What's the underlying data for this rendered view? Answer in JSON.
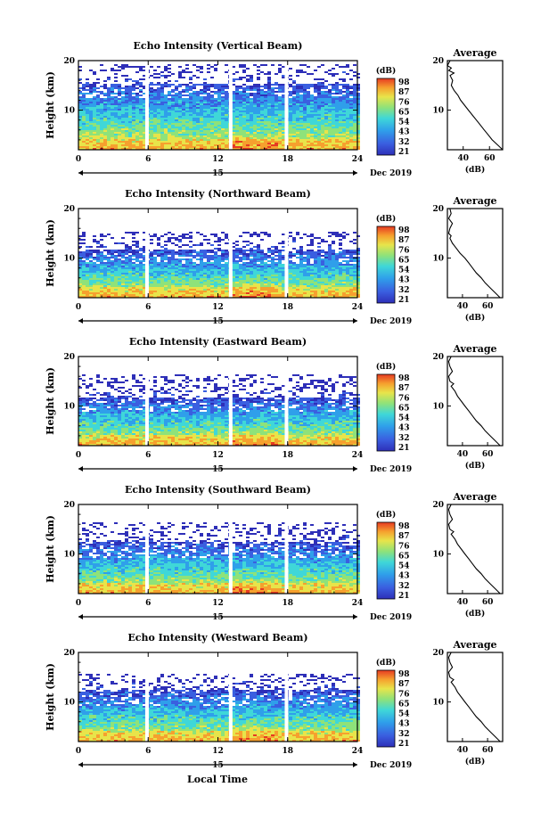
{
  "figure": {
    "x_label": "Local Time",
    "day_label": "15",
    "month_label": "Dec 2019",
    "y_label": "Height (km)",
    "profile_title": "Average",
    "profile_xlabel": "(dB)",
    "unit_label": "(dB)"
  },
  "chart_data": [
    {
      "type": "heatmap",
      "title": "Echo Intensity (Vertical Beam)",
      "xlabel": "Local Time",
      "ylabel": "Height (km)",
      "xlim": [
        0,
        24
      ],
      "ylim": [
        2,
        20
      ],
      "x_ticks": [
        "0",
        "6",
        "12",
        "18",
        "24"
      ],
      "y_ticks": [
        "10",
        "20"
      ],
      "colorbar": {
        "label": "(dB)",
        "ticks": [
          "98",
          "87",
          "76",
          "65",
          "54",
          "43",
          "32",
          "21"
        ]
      },
      "no_data_gaps_hours": [
        5.9,
        13.1,
        17.9
      ],
      "dense_echo_top_km": 15.5,
      "cloud_top_km": 19.5
    },
    {
      "type": "heatmap",
      "title": "Echo Intensity (Northward Beam)",
      "xlabel": "Local Time",
      "ylabel": "Height (km)",
      "xlim": [
        0,
        24
      ],
      "ylim": [
        2,
        20
      ],
      "x_ticks": [
        "0",
        "6",
        "12",
        "18",
        "24"
      ],
      "y_ticks": [
        "10",
        "20"
      ],
      "colorbar": {
        "label": "(dB)",
        "ticks": [
          "98",
          "87",
          "76",
          "65",
          "54",
          "43",
          "32",
          "21"
        ]
      },
      "no_data_gaps_hours": [
        5.9,
        13.1,
        17.9
      ],
      "dense_echo_top_km": 12,
      "cloud_top_km": 15.5
    },
    {
      "type": "heatmap",
      "title": "Echo Intensity (Eastward Beam)",
      "xlabel": "Local Time",
      "ylabel": "Height (km)",
      "xlim": [
        0,
        24
      ],
      "ylim": [
        2,
        20
      ],
      "x_ticks": [
        "0",
        "6",
        "12",
        "18",
        "24"
      ],
      "y_ticks": [
        "10",
        "20"
      ],
      "colorbar": {
        "label": "(dB)",
        "ticks": [
          "98",
          "87",
          "76",
          "65",
          "54",
          "43",
          "32",
          "21"
        ]
      },
      "no_data_gaps_hours": [
        5.9,
        13.1,
        17.9
      ],
      "dense_echo_top_km": 12,
      "cloud_top_km": 16.5
    },
    {
      "type": "heatmap",
      "title": "Echo Intensity (Southward Beam)",
      "xlabel": "Local Time",
      "ylabel": "Height (km)",
      "xlim": [
        0,
        24
      ],
      "ylim": [
        2,
        20
      ],
      "x_ticks": [
        "0",
        "6",
        "12",
        "18",
        "24"
      ],
      "y_ticks": [
        "10",
        "20"
      ],
      "colorbar": {
        "label": "(dB)",
        "ticks": [
          "98",
          "87",
          "76",
          "65",
          "54",
          "43",
          "32",
          "21"
        ]
      },
      "no_data_gaps_hours": [
        5.9,
        13.1,
        17.9
      ],
      "dense_echo_top_km": 12.5,
      "cloud_top_km": 16.5
    },
    {
      "type": "heatmap",
      "title": "Echo Intensity (Westward Beam)",
      "xlabel": "Local Time",
      "ylabel": "Height (km)",
      "xlim": [
        0,
        24
      ],
      "ylim": [
        2,
        20
      ],
      "x_ticks": [
        "0",
        "6",
        "12",
        "18",
        "24"
      ],
      "y_ticks": [
        "10",
        "20"
      ],
      "colorbar": {
        "label": "(dB)",
        "ticks": [
          "98",
          "87",
          "76",
          "65",
          "54",
          "43",
          "32",
          "21"
        ]
      },
      "no_data_gaps_hours": [
        5.9,
        13.1,
        17.9
      ],
      "dense_echo_top_km": 12.5,
      "cloud_top_km": 16
    },
    {
      "type": "line",
      "title": "Average",
      "xlabel": "(dB)",
      "ylabel": "Height (km)",
      "ylim": [
        2,
        20
      ],
      "x_ticks": [
        "40",
        "60"
      ],
      "xlim": [
        28,
        70
      ],
      "x": [
        70,
        66,
        62,
        59,
        56,
        53,
        50,
        47,
        44,
        41,
        38,
        36,
        33,
        31,
        32,
        30,
        33,
        29,
        31,
        28,
        30
      ],
      "y": [
        2,
        3,
        4,
        5,
        6,
        7,
        8,
        9,
        10,
        11,
        12,
        13,
        14,
        15,
        16,
        17,
        17.5,
        18,
        18.5,
        19,
        20
      ]
    },
    {
      "type": "line",
      "title": "Average",
      "xlabel": "(dB)",
      "ylabel": "Height (km)",
      "ylim": [
        2,
        20
      ],
      "x_ticks": [
        "40",
        "60"
      ],
      "xlim": [
        28,
        72
      ],
      "x": [
        70,
        66,
        62,
        58,
        55,
        51,
        48,
        45,
        42,
        38,
        35,
        32,
        30,
        31,
        29,
        30,
        32,
        29,
        31,
        30
      ],
      "y": [
        2,
        3,
        4,
        5,
        6,
        7,
        8,
        9,
        10,
        11,
        12,
        13,
        14,
        14.5,
        15,
        16,
        17,
        18,
        19,
        20
      ]
    },
    {
      "type": "line",
      "title": "Average",
      "xlabel": "(dB)",
      "ylabel": "Height (km)",
      "ylim": [
        2,
        20
      ],
      "x_ticks": [
        "40",
        "60"
      ],
      "xlim": [
        28,
        72
      ],
      "x": [
        70,
        66,
        62,
        58,
        55,
        51,
        48,
        45,
        42,
        39,
        36,
        34,
        31,
        33,
        30,
        29,
        32,
        30,
        29,
        31
      ],
      "y": [
        2,
        3,
        4,
        5,
        6,
        7,
        8,
        9,
        10,
        11,
        12,
        13,
        14,
        14.5,
        15,
        16,
        17,
        18,
        19,
        20
      ]
    },
    {
      "type": "line",
      "title": "Average",
      "xlabel": "(dB)",
      "ylabel": "Height (km)",
      "ylim": [
        2,
        20
      ],
      "x_ticks": [
        "40",
        "60"
      ],
      "xlim": [
        28,
        72
      ],
      "x": [
        70,
        66,
        62,
        58,
        55,
        51,
        48,
        45,
        42,
        39,
        36,
        34,
        31,
        33,
        30,
        29,
        32,
        30,
        29,
        31
      ],
      "y": [
        2,
        3,
        4,
        5,
        6,
        7,
        8,
        9,
        10,
        11,
        12,
        13,
        14,
        14.5,
        15,
        16,
        17,
        18,
        19,
        20
      ]
    },
    {
      "type": "line",
      "title": "Average",
      "xlabel": "(dB)",
      "ylabel": "Height (km)",
      "ylim": [
        2,
        20
      ],
      "x_ticks": [
        "40",
        "60"
      ],
      "xlim": [
        28,
        72
      ],
      "x": [
        70,
        66,
        62,
        58,
        55,
        51,
        48,
        45,
        42,
        39,
        36,
        34,
        31,
        33,
        30,
        29,
        32,
        30,
        29,
        31
      ],
      "y": [
        2,
        3,
        4,
        5,
        6,
        7,
        8,
        9,
        10,
        11,
        12,
        13,
        14,
        14.5,
        15,
        16,
        17,
        18,
        19,
        20
      ]
    }
  ],
  "colormap": [
    "#2e2fb8",
    "#3a5fe0",
    "#2f9fea",
    "#3fd7d8",
    "#8ee27a",
    "#e8e44a",
    "#f6a02e",
    "#e63a22"
  ]
}
